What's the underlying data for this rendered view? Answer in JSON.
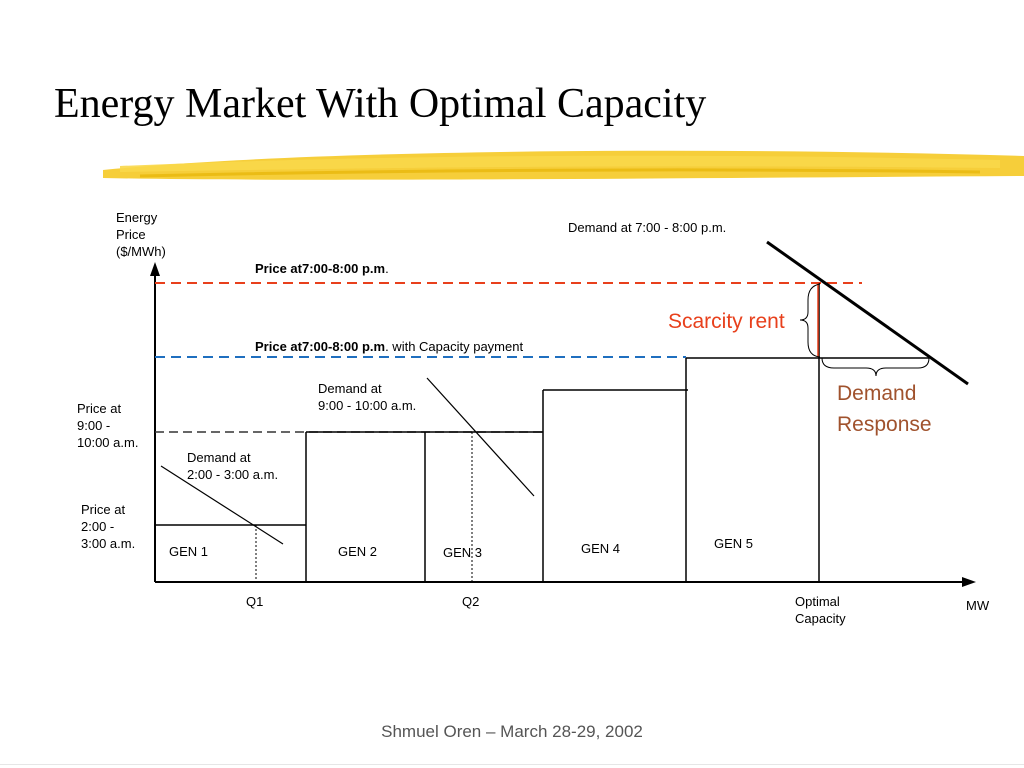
{
  "slide": {
    "title": "Energy Market With Optimal Capacity",
    "footer": "Shmuel Oren – March 28-29, 2002",
    "accent_color": "#f5c518"
  },
  "axes": {
    "y_label": [
      "Energy",
      "Price",
      "($/MWh)"
    ],
    "x_label": "MW"
  },
  "price_lines": {
    "scarcity_bold": "Price at7:00-8:00 p.m",
    "scarcity_rest": ".",
    "scarcity_color": "#e8401c",
    "capacity_bold": "Price at7:00-8:00 p.m",
    "capacity_rest": ". with Capacity payment",
    "capacity_color": "#1f6fbf",
    "morning": [
      "Price at",
      "9:00 -",
      "10:00 a.m."
    ],
    "night": [
      "Price at",
      "2:00 -",
      "3:00 a.m."
    ]
  },
  "demand_labels": {
    "evening": "Demand at 7:00 - 8:00 p.m.",
    "morning": [
      "Demand at",
      "9:00 - 10:00 a.m."
    ],
    "night": [
      "Demand at",
      "2:00 - 3:00 a.m."
    ]
  },
  "generators": [
    "GEN 1",
    "GEN 2",
    "GEN 3",
    "GEN 4",
    "GEN 5"
  ],
  "x_markers": {
    "q1": "Q1",
    "q2": "Q2",
    "optimal": [
      "Optimal",
      "Capacity"
    ]
  },
  "annotations": {
    "scarcity_rent": "Scarcity rent",
    "scarcity_color": "#e8401c",
    "demand_response": [
      "Demand",
      "Response"
    ],
    "demand_response_color": "#a0522d"
  }
}
